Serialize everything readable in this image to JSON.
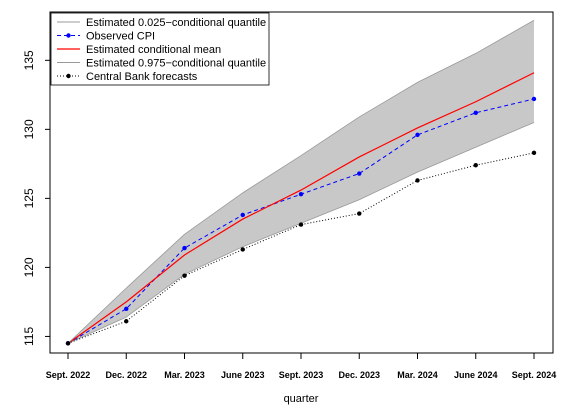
{
  "chart_data": {
    "type": "line",
    "xlabel": "quarter",
    "ylabel": "",
    "ylim": [
      113.8,
      138.5
    ],
    "yticks": [
      115,
      120,
      125,
      130,
      135
    ],
    "categories": [
      "Sept. 2022",
      "Dec. 2022",
      "Mar. 2023",
      "June 2023",
      "Sept. 2023",
      "Dec. 2023",
      "Mar. 2024",
      "June 2024",
      "Sept. 2024"
    ],
    "grid": false,
    "legend_position": "top-left",
    "series": [
      {
        "name": "Estimated 0.025−conditional quantile",
        "kind": "band-lower",
        "color": "#999999",
        "values": [
          114.5,
          116.4,
          119.5,
          121.5,
          123.2,
          124.9,
          126.9,
          128.7,
          130.5
        ]
      },
      {
        "name": "Observed CPI",
        "kind": "dashed-points",
        "color": "#0000ff",
        "values": [
          114.5,
          117.0,
          121.4,
          123.8,
          125.3,
          126.8,
          129.6,
          131.2,
          132.2
        ]
      },
      {
        "name": "Estimated conditional mean",
        "kind": "solid",
        "color": "#ff0000",
        "values": [
          114.5,
          117.5,
          120.9,
          123.5,
          125.6,
          128.0,
          130.1,
          132.0,
          134.1
        ]
      },
      {
        "name": "Estimated 0.975−conditional quantile",
        "kind": "band-upper",
        "color": "#999999",
        "values": [
          114.5,
          118.5,
          122.4,
          125.4,
          128.1,
          130.9,
          133.4,
          135.5,
          137.9
        ]
      },
      {
        "name": "Central Bank forecasts",
        "kind": "dotted-points",
        "color": "#000000",
        "values": [
          114.5,
          116.1,
          119.4,
          121.3,
          123.1,
          123.9,
          126.3,
          127.4,
          128.3
        ]
      }
    ],
    "band_fill": "#c8c8c8"
  }
}
